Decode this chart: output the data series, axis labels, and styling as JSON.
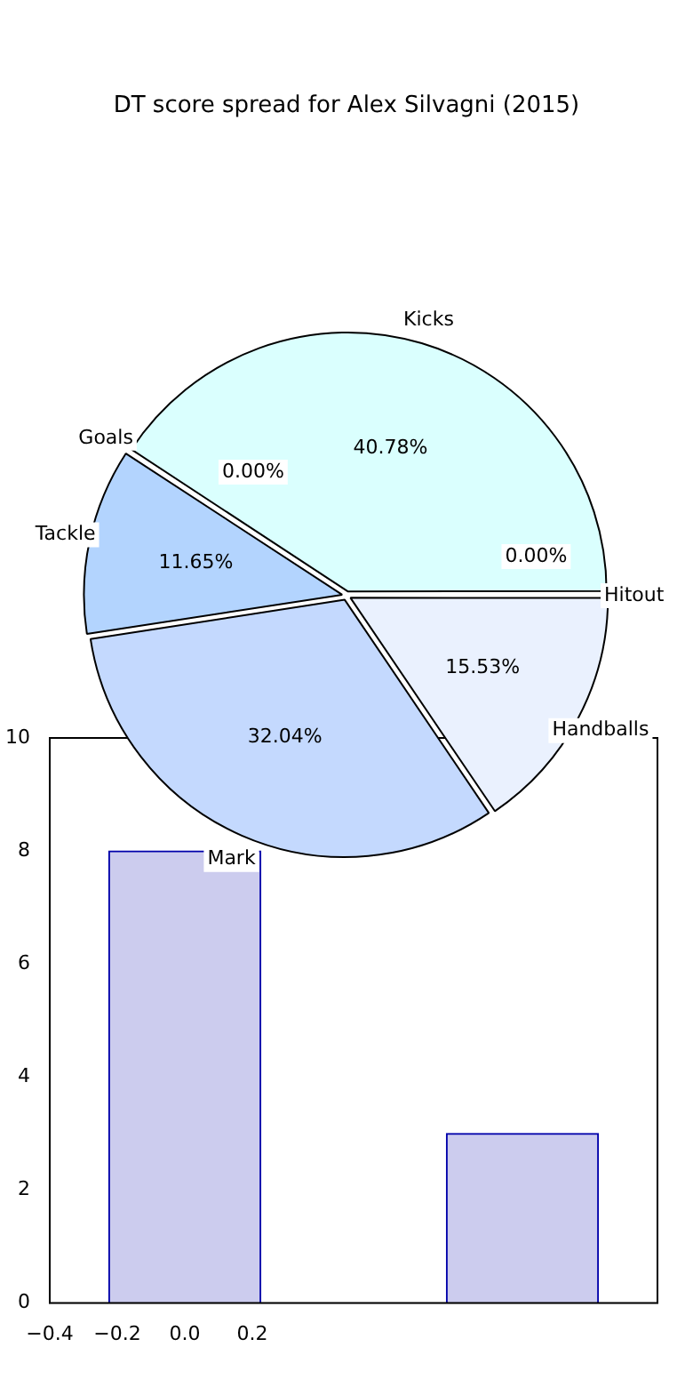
{
  "chart_data": [
    {
      "type": "pie",
      "title": "DT score spread for Alex Silvagni (2015)",
      "categories": [
        "Handballs",
        "Mark",
        "Tackle",
        "Goals",
        "Kicks",
        "Hitout"
      ],
      "values": [
        15.53,
        32.04,
        11.65,
        0.0,
        40.78,
        0.0
      ],
      "colors": [
        "#eaf1fe",
        "#c4d9fe",
        "#b3d4fe",
        "#c8e0fe",
        "#dafffe",
        "#d8e8fe"
      ],
      "value_labels": [
        "15.53%",
        "32.04%",
        "11.65%",
        "0.00%",
        "40.78%",
        "0.00%"
      ],
      "legend": false
    },
    {
      "type": "bar",
      "x": [
        0,
        1
      ],
      "values": [
        8,
        3
      ],
      "color": "#ccccee",
      "xlim": [
        -0.4,
        1.4
      ],
      "xticks": [
        {
          "value": -0.4,
          "label": "−0.4"
        },
        {
          "value": -0.2,
          "label": "−0.2"
        },
        {
          "value": 0,
          "label": "0.0"
        },
        {
          "value": 0.2,
          "label": "0.2"
        }
      ],
      "ylim": [
        0,
        10
      ],
      "yticks": [
        0,
        2,
        4,
        6,
        8,
        10
      ],
      "grid": false,
      "legend": false
    }
  ]
}
